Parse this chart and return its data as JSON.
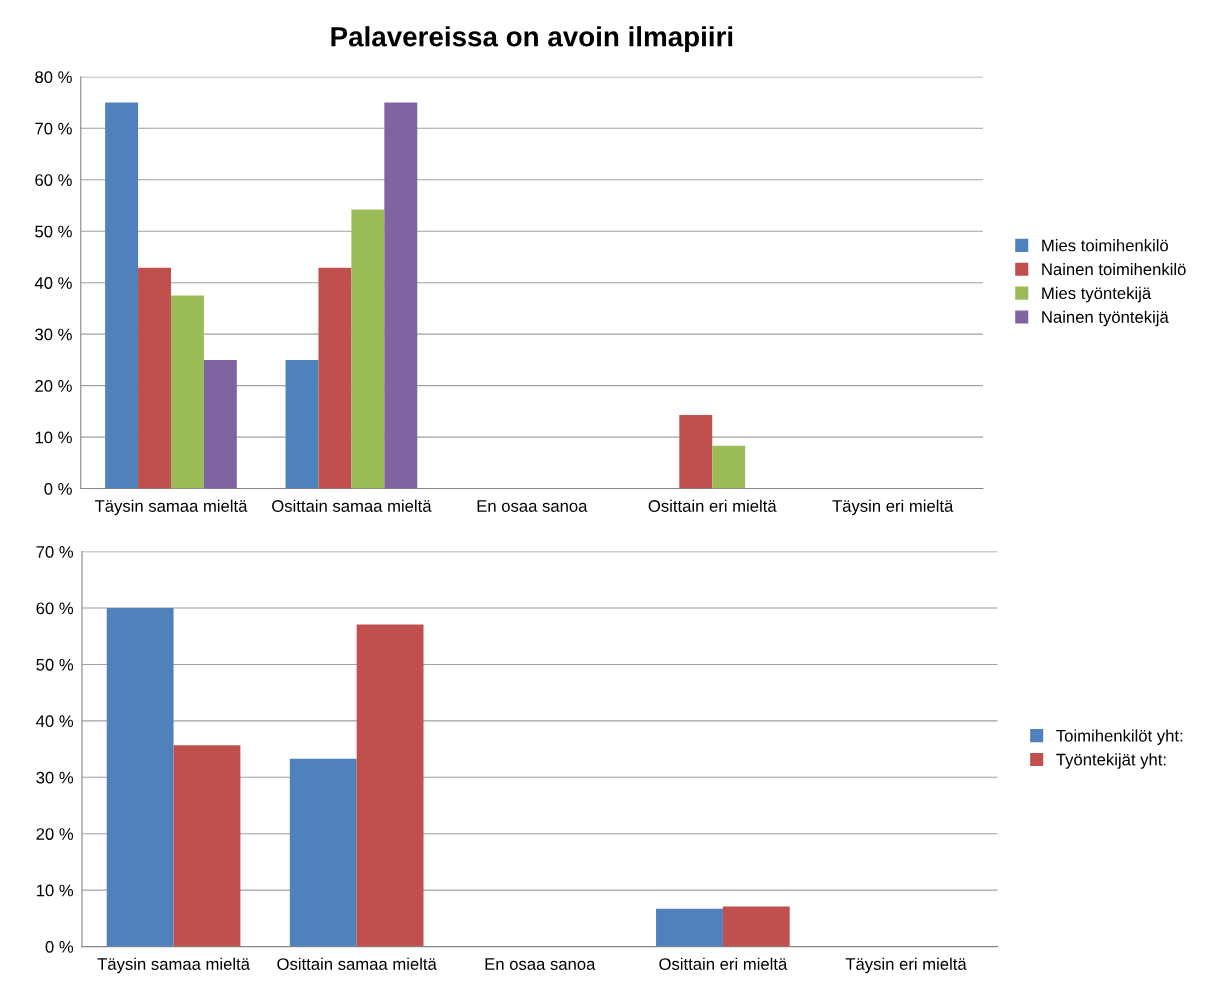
{
  "chart_data": [
    {
      "type": "bar",
      "title": "Palavereissa on avoin ilmapiiri",
      "categories": [
        "Täysin samaa mieltä",
        "Osittain samaa mieltä",
        "En osaa sanoa",
        "Osittain eri mieltä",
        "Täysin eri mieltä"
      ],
      "series": [
        {
          "name": "Mies toimihenkilö",
          "color": "#4f81bd",
          "values": [
            75,
            25,
            0,
            0,
            0
          ]
        },
        {
          "name": "Nainen toimihenkilö",
          "color": "#c0504d",
          "values": [
            42.9,
            42.9,
            0,
            14.3,
            0
          ]
        },
        {
          "name": "Mies työntekijä",
          "color": "#9bbb59",
          "values": [
            37.5,
            54.2,
            0,
            8.3,
            0
          ]
        },
        {
          "name": "Nainen työntekijä",
          "color": "#8064a2",
          "values": [
            25,
            75,
            0,
            0,
            0
          ]
        }
      ],
      "ylim": [
        0,
        80
      ],
      "yticks": [
        {
          "value": 0,
          "label": "0 %"
        },
        {
          "value": 10,
          "label": "10 %"
        },
        {
          "value": 20,
          "label": "20 %"
        },
        {
          "value": 30,
          "label": "30 %"
        },
        {
          "value": 40,
          "label": "40 %"
        },
        {
          "value": 50,
          "label": "50 %"
        },
        {
          "value": 60,
          "label": "60 %"
        },
        {
          "value": 70,
          "label": "70 %"
        },
        {
          "value": 80,
          "label": "80 %"
        }
      ],
      "grid": "y",
      "legend": "right"
    },
    {
      "type": "bar",
      "categories": [
        "Täysin samaa mieltä",
        "Osittain samaa mieltä",
        "En osaa sanoa",
        "Osittain eri mieltä",
        "Täysin eri mieltä"
      ],
      "series": [
        {
          "name": "Toimihenkilöt yht:",
          "color": "#4f81bd",
          "values": [
            60,
            33.3,
            0,
            6.7,
            0
          ]
        },
        {
          "name": "Työntekijät yht:",
          "color": "#c0504d",
          "values": [
            35.7,
            57.1,
            0,
            7.1,
            0
          ]
        }
      ],
      "ylim": [
        0,
        70
      ],
      "yticks": [
        {
          "value": 0,
          "label": "0 %"
        },
        {
          "value": 10,
          "label": "10 %"
        },
        {
          "value": 20,
          "label": "20 %"
        },
        {
          "value": 30,
          "label": "30 %"
        },
        {
          "value": 40,
          "label": "40 %"
        },
        {
          "value": 50,
          "label": "50 %"
        },
        {
          "value": 60,
          "label": "60 %"
        },
        {
          "value": 70,
          "label": "70 %"
        }
      ],
      "grid": "y",
      "legend": "right"
    }
  ]
}
